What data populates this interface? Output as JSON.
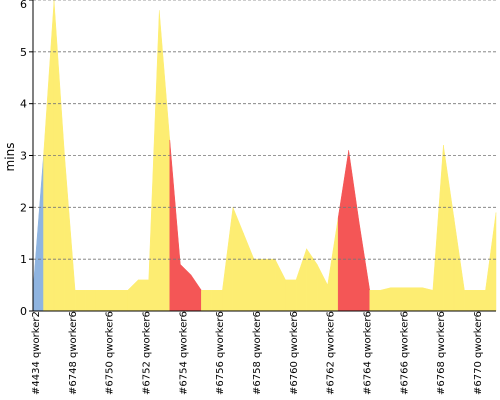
{
  "chart_data": {
    "type": "area",
    "title": "",
    "xlabel": "",
    "ylabel": "mins",
    "ylim": [
      0,
      6
    ],
    "yticks": [
      0,
      1,
      2,
      3,
      4,
      5,
      6
    ],
    "grid": true,
    "grid_style": "dashed-horizontal",
    "legend": "none",
    "x_tick_labels": [
      "#4434 qworker2",
      "#6748 qworker6",
      "#6750 qworker6",
      "#6752 qworker6",
      "#6754 qworker6",
      "#6756 qworker6",
      "#6758 qworker6",
      "#6760 qworker6",
      "#6762 qworker6",
      "#6764 qworker6",
      "#6766 qworker6",
      "#6768 qworker6",
      "#6770 qworker6"
    ],
    "values": [
      0.4,
      3.0,
      6.0,
      3.0,
      0.4,
      0.4,
      0.4,
      0.4,
      0.4,
      0.4,
      0.6,
      0.6,
      5.8,
      3.3,
      0.9,
      0.7,
      0.4,
      0.4,
      0.4,
      2.0,
      1.5,
      1.0,
      1.0,
      1.0,
      0.6,
      0.6,
      1.2,
      0.9,
      0.5,
      1.8,
      3.1,
      1.7,
      0.4,
      0.4,
      0.45,
      0.45,
      0.45,
      0.45,
      0.4,
      3.2,
      1.8,
      0.4,
      0.4,
      0.4,
      1.9
    ],
    "status": [
      "ok",
      "ok",
      "ok",
      "ok",
      "ok",
      "ok",
      "ok",
      "ok",
      "ok",
      "ok",
      "ok",
      "ok",
      "ok",
      "failed",
      "failed",
      "failed",
      "ok",
      "ok",
      "ok",
      "ok",
      "ok",
      "ok",
      "ok",
      "ok",
      "ok",
      "ok",
      "ok",
      "ok",
      "ok",
      "failed",
      "failed",
      "failed",
      "ok",
      "ok",
      "ok",
      "ok",
      "ok",
      "ok",
      "ok",
      "ok",
      "ok",
      "ok",
      "ok",
      "ok",
      "ok"
    ],
    "first_point_color": "#8fb4e0",
    "colors": {
      "ok": "#fded72",
      "failed": "#f45656",
      "first": "#8fb4e0",
      "grid": "#777777",
      "axis": "#000000"
    }
  }
}
